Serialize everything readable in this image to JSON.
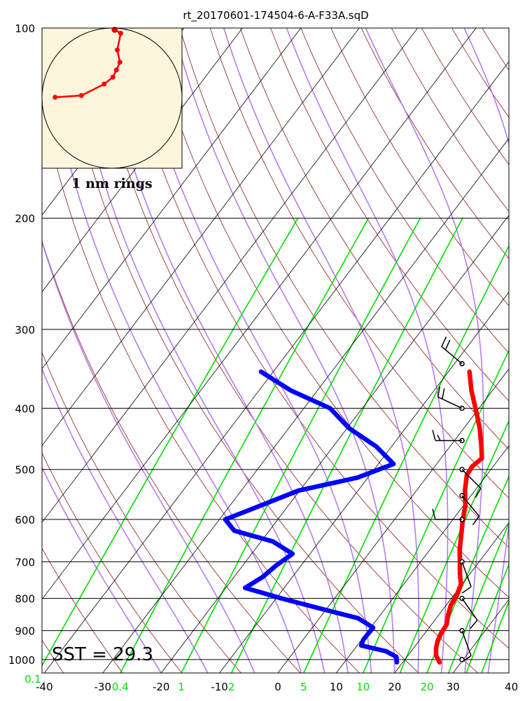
{
  "chart_data": {
    "type": "line",
    "title": "rt_20170601-174504-6-A-F33A.sqD",
    "x_ticks": [
      "-40",
      "-30",
      "-20",
      "-10",
      "0",
      "10",
      "20",
      "30",
      "40"
    ],
    "y_ticks": [
      "100",
      "200",
      "300",
      "400",
      "500",
      "600",
      "700",
      "800",
      "900",
      "1000"
    ],
    "mixing_ratio_labels": [
      "0.1",
      "0.4",
      "1",
      "2",
      "5",
      "10",
      "20"
    ],
    "xlim": [
      -40,
      40
    ],
    "ylim": [
      1050,
      100
    ],
    "y_scale": "log",
    "grid": true,
    "sst_label": "SST = 29.3",
    "hodograph_label": "1 nm rings",
    "colors": {
      "temperature": "#ff0000",
      "dewpoint": "#0000ff",
      "dry_adiabat": "#8b1a1a",
      "moist_adiabat": "#b57cf0",
      "mixing_ratio": "#00dd00",
      "isotherm": "#000000",
      "hodograph_bg": "#fdf5dc"
    },
    "series": [
      {
        "name": "Temperature",
        "points": [
          {
            "p": 1010,
            "t": 26.3
          },
          {
            "p": 985,
            "t": 24.8
          },
          {
            "p": 960,
            "t": 23.9
          },
          {
            "p": 935,
            "t": 23.2
          },
          {
            "p": 910,
            "t": 22.8
          },
          {
            "p": 880,
            "t": 22.6
          },
          {
            "p": 850,
            "t": 21.6
          },
          {
            "p": 820,
            "t": 20.8
          },
          {
            "p": 790,
            "t": 20.5
          },
          {
            "p": 760,
            "t": 19.8
          },
          {
            "p": 730,
            "t": 18.2
          },
          {
            "p": 700,
            "t": 16.7
          },
          {
            "p": 670,
            "t": 15.1
          },
          {
            "p": 640,
            "t": 13.7
          },
          {
            "p": 600,
            "t": 11.7
          },
          {
            "p": 570,
            "t": 10.3
          },
          {
            "p": 540,
            "t": 8.3
          },
          {
            "p": 510,
            "t": 6.6
          },
          {
            "p": 495,
            "t": 6.4
          },
          {
            "p": 480,
            "t": 7.0
          },
          {
            "p": 460,
            "t": 5.4
          },
          {
            "p": 430,
            "t": 2.7
          },
          {
            "p": 400,
            "t": -0.6
          },
          {
            "p": 375,
            "t": -3.6
          },
          {
            "p": 350,
            "t": -6.4
          }
        ]
      },
      {
        "name": "Dewpoint",
        "points": [
          {
            "p": 1010,
            "t": 19.0
          },
          {
            "p": 990,
            "t": 18.2
          },
          {
            "p": 970,
            "t": 15.7
          },
          {
            "p": 950,
            "t": 10.7
          },
          {
            "p": 930,
            "t": 10.3
          },
          {
            "p": 890,
            "t": 10.4
          },
          {
            "p": 860,
            "t": 6.6
          },
          {
            "p": 830,
            "t": -1.2
          },
          {
            "p": 800,
            "t": -9.1
          },
          {
            "p": 770,
            "t": -16.7
          },
          {
            "p": 740,
            "t": -15.1
          },
          {
            "p": 710,
            "t": -14.3
          },
          {
            "p": 680,
            "t": -13.0
          },
          {
            "p": 650,
            "t": -18.0
          },
          {
            "p": 625,
            "t": -26.0
          },
          {
            "p": 600,
            "t": -29.0
          },
          {
            "p": 570,
            "t": -24.7
          },
          {
            "p": 540,
            "t": -20.2
          },
          {
            "p": 515,
            "t": -11.8
          },
          {
            "p": 490,
            "t": -7.4
          },
          {
            "p": 460,
            "t": -12.6
          },
          {
            "p": 430,
            "t": -19.7
          },
          {
            "p": 400,
            "t": -25.5
          },
          {
            "p": 375,
            "t": -34.5
          },
          {
            "p": 350,
            "t": -42.1
          }
        ]
      }
    ],
    "wind_barbs": [
      {
        "p": 1000,
        "dir": 0,
        "speed": 0
      },
      {
        "p": 900,
        "dir": 160,
        "speed": 10
      },
      {
        "p": 800,
        "dir": 145,
        "speed": 10
      },
      {
        "p": 700,
        "dir": 160,
        "speed": 10
      },
      {
        "p": 600,
        "dir": 270,
        "speed": 10
      },
      {
        "p": 550,
        "dir": 140,
        "speed": 10
      },
      {
        "p": 500,
        "dir": 135,
        "speed": 10
      },
      {
        "p": 450,
        "dir": 270,
        "speed": 15
      },
      {
        "p": 400,
        "dir": 295,
        "speed": 20
      },
      {
        "p": 340,
        "dir": 310,
        "speed": 20
      }
    ],
    "hodograph": [
      {
        "u": -6.5,
        "v": 0.1
      },
      {
        "u": -3.5,
        "v": 0.3
      },
      {
        "u": -0.9,
        "v": 1.6
      },
      {
        "u": 0.1,
        "v": 2.4
      },
      {
        "u": 0.5,
        "v": 3.2
      },
      {
        "u": 0.9,
        "v": 4.1
      },
      {
        "u": 0.6,
        "v": 5.5
      },
      {
        "u": 1.0,
        "v": 7.4
      },
      {
        "u": 0.3,
        "v": 7.8
      }
    ]
  }
}
